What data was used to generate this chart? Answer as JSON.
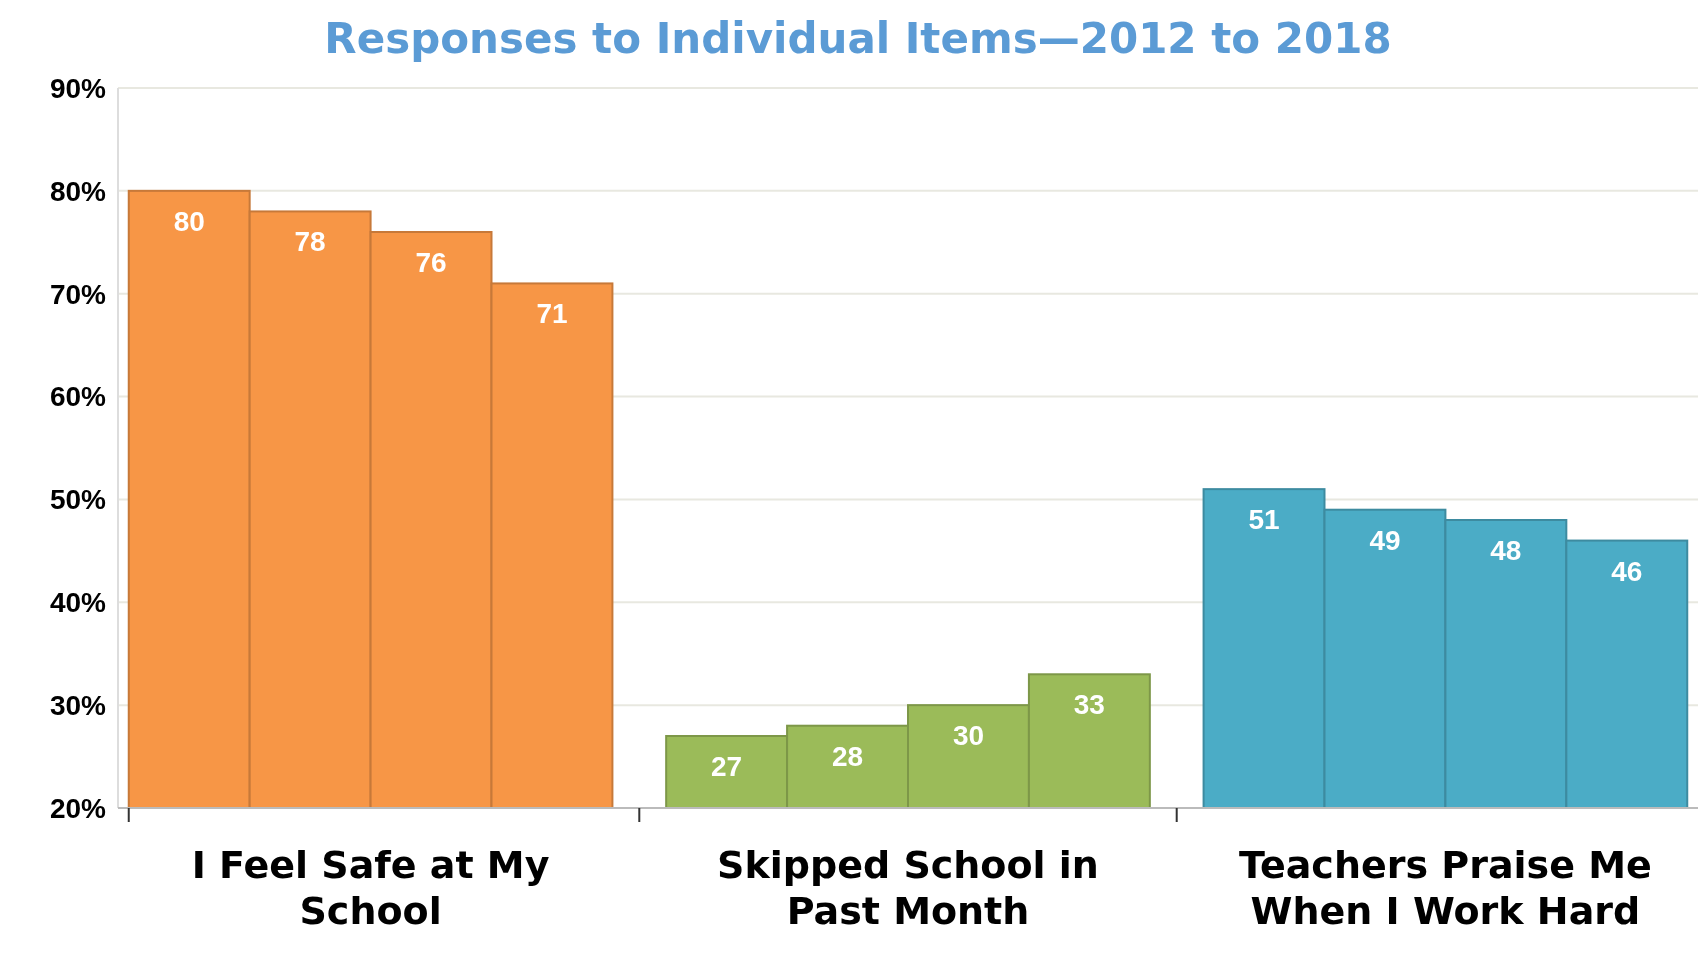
{
  "chart_data": {
    "type": "bar",
    "title": "Responses to Individual Items—2012 to 2018",
    "categories": [
      "I Feel Safe at My School",
      "Skipped School in Past Month",
      "Teachers Praise Me When I Work Hard"
    ],
    "series": [
      {
        "colors": [
          "#f79646",
          "#9bbb59",
          "#4bacc6"
        ],
        "values": [
          80,
          27,
          51
        ]
      },
      {
        "colors": [
          "#f79646",
          "#9bbb59",
          "#4bacc6"
        ],
        "values": [
          78,
          28,
          49
        ]
      },
      {
        "colors": [
          "#f79646",
          "#9bbb59",
          "#4bacc6"
        ],
        "values": [
          76,
          30,
          48
        ]
      },
      {
        "colors": [
          "#f79646",
          "#9bbb59",
          "#4bacc6"
        ],
        "values": [
          71,
          33,
          46
        ]
      }
    ],
    "ylim": [
      20,
      90
    ],
    "yticks": [
      {
        "value": 20,
        "label": "20%"
      },
      {
        "value": 30,
        "label": "30%"
      },
      {
        "value": 40,
        "label": "40%"
      },
      {
        "value": 50,
        "label": "50%"
      },
      {
        "value": 60,
        "label": "60%"
      },
      {
        "value": 70,
        "label": "70%"
      },
      {
        "value": 80,
        "label": "80%"
      },
      {
        "value": 90,
        "label": "90%"
      }
    ],
    "grid": "y",
    "data_labels": true
  }
}
